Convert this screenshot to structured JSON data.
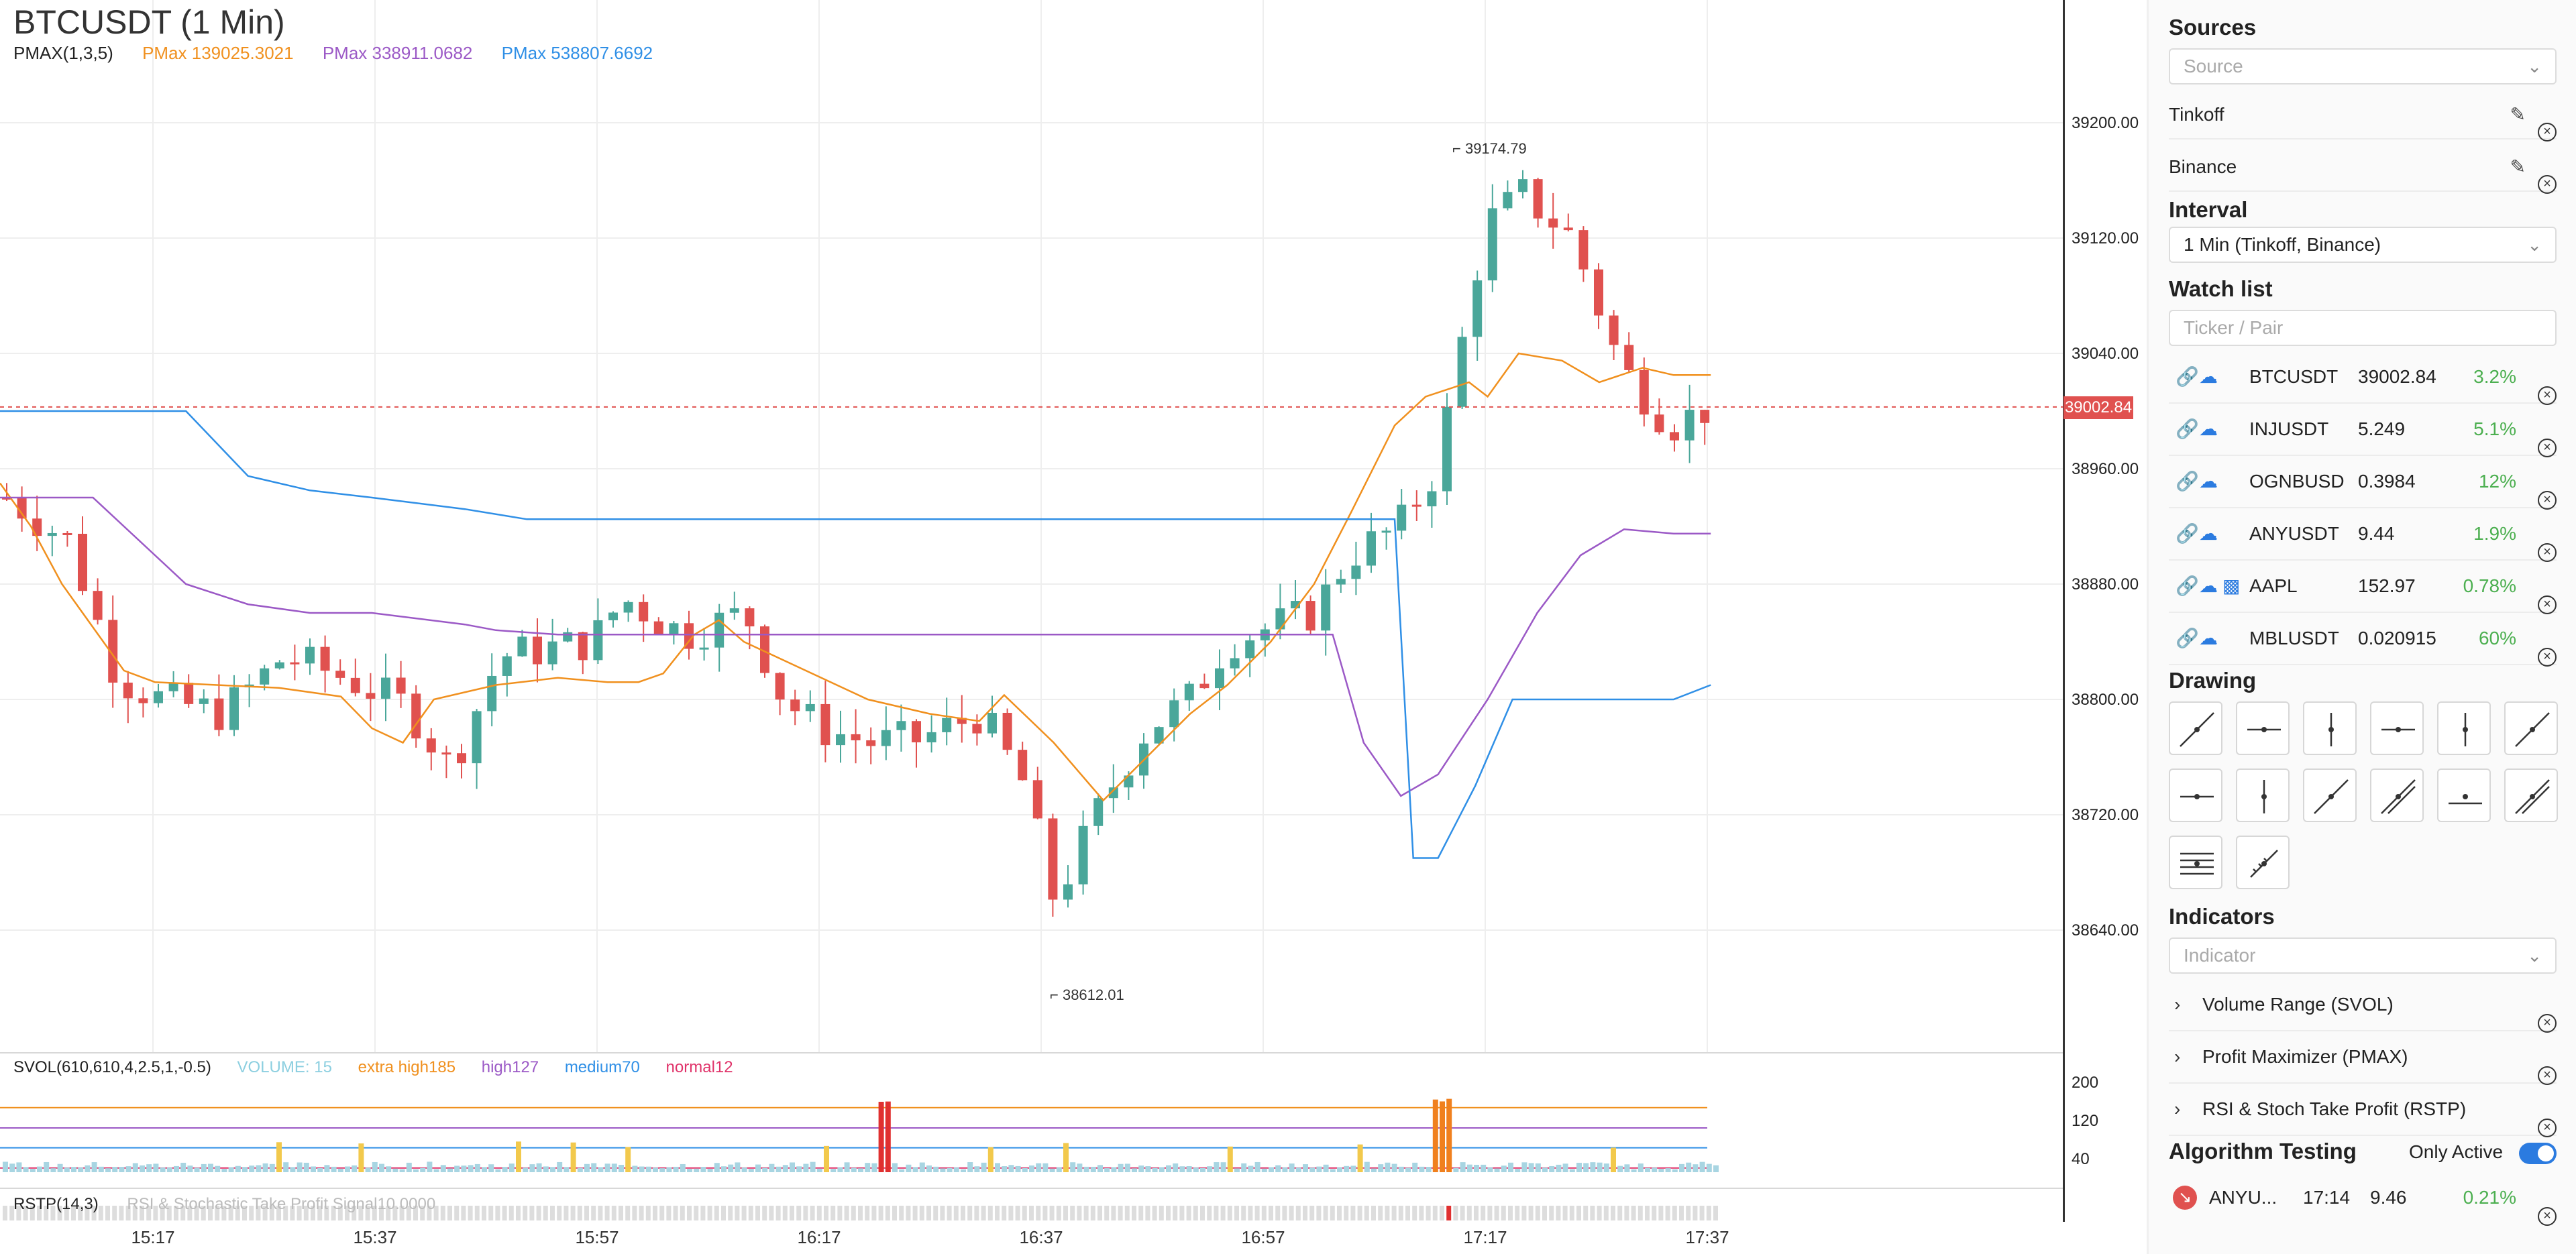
{
  "chart": {
    "title": "BTCUSDT (1 Min)",
    "pmax_legend": [
      {
        "text": "PMAX(1,3,5)",
        "color": "#222222"
      },
      {
        "text": "PMax 139025.3021",
        "color": "#f0901e"
      },
      {
        "text": "PMax 338911.0682",
        "color": "#9b59c6"
      },
      {
        "text": "PMax 538807.6692",
        "color": "#2f8fe6"
      }
    ],
    "svol_legend": [
      {
        "text": "SVOL(610,610,4,2.5,1,-0.5)",
        "color": "#222222"
      },
      {
        "text": "VOLUME: 15",
        "color": "#8ccfe0"
      },
      {
        "text": "extra high185",
        "color": "#f0901e"
      },
      {
        "text": "high127",
        "color": "#9b59c6"
      },
      {
        "text": "medium70",
        "color": "#2f8fe6"
      },
      {
        "text": "normal12",
        "color": "#e0336a"
      }
    ],
    "rstp_legend": "RSTP(14,3)",
    "rstp_sub": "RSI & Stochastic Take Profit Signal10.0000",
    "price_axis": [
      "39200.00",
      "39120.00",
      "39040.00",
      "38960.00",
      "38880.00",
      "38800.00",
      "38720.00",
      "38640.00"
    ],
    "volume_axis": [
      "200",
      "120",
      "40"
    ],
    "time_axis": [
      "15:17",
      "15:37",
      "15:57",
      "16:17",
      "16:37",
      "16:57",
      "17:17",
      "17:37"
    ],
    "current_price": "39002.84",
    "high_marker": "39174.79",
    "low_marker": "38612.01",
    "colors": {
      "up": "#4aa79a",
      "down": "#e0514f",
      "orange": "#f0901e",
      "purple": "#9b59c6",
      "blue": "#2f8fe6"
    }
  },
  "chart_data": {
    "type": "candlestick",
    "title": "BTCUSDT (1 Min)",
    "x_range": [
      "15:05",
      "17:37"
    ],
    "y_range": [
      38600,
      39230
    ],
    "high": 39174.79,
    "low": 38612.01,
    "last": 39002.84,
    "price_ticks": [
      39200,
      39120,
      39040,
      38960,
      38880,
      38800,
      38720,
      38640
    ],
    "series": [
      {
        "name": "PMax 139025.3021",
        "points": [
          [
            0,
            38950
          ],
          [
            5,
            38920
          ],
          [
            10,
            38880
          ],
          [
            15,
            38850
          ],
          [
            20,
            38820
          ],
          [
            25,
            38812
          ],
          [
            35,
            38810
          ],
          [
            45,
            38808
          ],
          [
            55,
            38802
          ],
          [
            60,
            38780
          ],
          [
            65,
            38770
          ],
          [
            70,
            38800
          ],
          [
            80,
            38810
          ],
          [
            90,
            38815
          ],
          [
            98,
            38812
          ],
          [
            103,
            38812
          ],
          [
            107,
            38818
          ],
          [
            112,
            38845
          ],
          [
            116,
            38855
          ],
          [
            120,
            38840
          ],
          [
            130,
            38820
          ],
          [
            140,
            38800
          ],
          [
            150,
            38790
          ],
          [
            158,
            38785
          ],
          [
            162,
            38803
          ],
          [
            170,
            38770
          ],
          [
            178,
            38730
          ],
          [
            185,
            38760
          ],
          [
            192,
            38790
          ],
          [
            198,
            38810
          ],
          [
            205,
            38840
          ],
          [
            212,
            38880
          ],
          [
            218,
            38930
          ],
          [
            225,
            38990
          ],
          [
            230,
            39010
          ],
          [
            237,
            39020
          ],
          [
            240,
            39010
          ],
          [
            245,
            39040
          ],
          [
            252,
            39035
          ],
          [
            258,
            39020
          ],
          [
            265,
            39030
          ],
          [
            270,
            39025
          ],
          [
            276,
            39025
          ]
        ]
      },
      {
        "name": "PMax 338911.0682",
        "points": [
          [
            0,
            38940
          ],
          [
            15,
            38940
          ],
          [
            20,
            38920
          ],
          [
            30,
            38880
          ],
          [
            40,
            38866
          ],
          [
            50,
            38860
          ],
          [
            60,
            38860
          ],
          [
            75,
            38852
          ],
          [
            80,
            38848
          ],
          [
            90,
            38845
          ],
          [
            120,
            38845
          ],
          [
            160,
            38845
          ],
          [
            180,
            38845
          ],
          [
            205,
            38845
          ],
          [
            215,
            38845
          ],
          [
            220,
            38770
          ],
          [
            226,
            38733
          ],
          [
            232,
            38748
          ],
          [
            240,
            38800
          ],
          [
            248,
            38860
          ],
          [
            255,
            38900
          ],
          [
            262,
            38918
          ],
          [
            270,
            38915
          ],
          [
            276,
            38915
          ]
        ]
      },
      {
        "name": "PMax 538807.6692",
        "points": [
          [
            0,
            39000
          ],
          [
            20,
            39000
          ],
          [
            30,
            39000
          ],
          [
            40,
            38955
          ],
          [
            50,
            38945
          ],
          [
            60,
            38940
          ],
          [
            75,
            38932
          ],
          [
            85,
            38925
          ],
          [
            95,
            38925
          ],
          [
            120,
            38925
          ],
          [
            160,
            38925
          ],
          [
            185,
            38925
          ],
          [
            205,
            38925
          ],
          [
            225,
            38925
          ],
          [
            228,
            38690
          ],
          [
            232,
            38690
          ],
          [
            238,
            38740
          ],
          [
            244,
            38800
          ],
          [
            262,
            38800
          ],
          [
            270,
            38800
          ],
          [
            276,
            38810
          ]
        ]
      }
    ],
    "volume_bands": {
      "extra_high": 185,
      "high": 127,
      "medium": 70,
      "normal": 12,
      "last_volume": 15
    }
  },
  "sidebar": {
    "sources_title": "Sources",
    "source_placeholder": "Source",
    "sources": [
      "Tinkoff",
      "Binance"
    ],
    "interval_title": "Interval",
    "interval_value": "1 Min (Tinkoff, Binance)",
    "watchlist_title": "Watch list",
    "watchlist_placeholder": "Ticker / Pair",
    "watchlist": [
      {
        "ticker": "BTCUSDT",
        "price": "39002.84",
        "change": "3.2%",
        "bars": false
      },
      {
        "ticker": "INJUSDT",
        "price": "5.249",
        "change": "5.1%",
        "bars": false
      },
      {
        "ticker": "OGNBUSD",
        "price": "0.3984",
        "change": "12%",
        "bars": false
      },
      {
        "ticker": "ANYUSDT",
        "price": "9.44",
        "change": "1.9%",
        "bars": false
      },
      {
        "ticker": "AAPL",
        "price": "152.97",
        "change": "0.78%",
        "bars": true
      },
      {
        "ticker": "MBLUSDT",
        "price": "0.020915",
        "change": "60%",
        "bars": false
      }
    ],
    "drawing_title": "Drawing",
    "indicators_title": "Indicators",
    "indicator_placeholder": "Indicator",
    "indicators": [
      "Volume Range (SVOL)",
      "Profit Maximizer (PMAX)",
      "RSI & Stoch Take Profit (RSTP)"
    ],
    "algo_title": "Algorithm Testing",
    "only_active_label": "Only Active",
    "algo_row": {
      "ticker": "ANYU...",
      "time": "17:14",
      "price": "9.46",
      "change": "0.21%"
    }
  }
}
